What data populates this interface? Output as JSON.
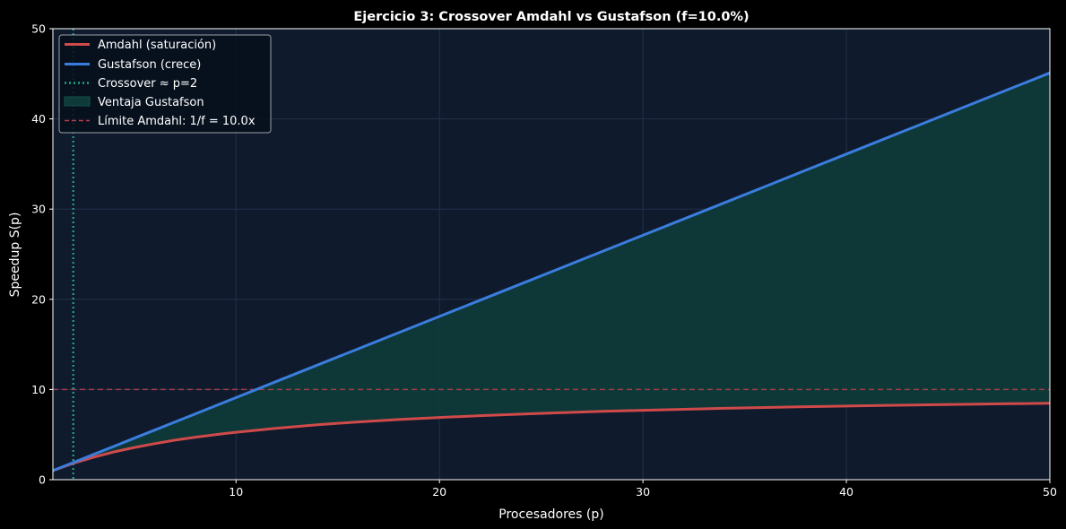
{
  "chart_data": {
    "type": "line",
    "title": "Ejercicio 3: Crossover Amdahl vs Gustafson (f=10.0%)",
    "xlabel": "Procesadores (p)",
    "ylabel": "Speedup S(p)",
    "xlim": [
      1,
      50
    ],
    "ylim": [
      0,
      50
    ],
    "xticks": [
      10,
      20,
      30,
      40,
      50
    ],
    "yticks": [
      0,
      10,
      20,
      30,
      40,
      50
    ],
    "grid": true,
    "legend_position": "top-left",
    "serial_fraction": 0.1,
    "x": [
      1,
      2,
      3,
      4,
      5,
      6,
      7,
      8,
      9,
      10,
      12,
      14,
      16,
      18,
      20,
      22,
      24,
      26,
      28,
      30,
      32,
      34,
      36,
      38,
      40,
      42,
      44,
      46,
      48,
      50
    ],
    "series": [
      {
        "name": "Amdahl (saturación)",
        "color": "#d04a4a",
        "values": [
          1.0,
          1.82,
          2.5,
          3.08,
          3.57,
          4.0,
          4.38,
          4.71,
          5.0,
          5.26,
          5.71,
          6.09,
          6.4,
          6.67,
          6.9,
          7.1,
          7.27,
          7.43,
          7.57,
          7.69,
          7.8,
          7.91,
          8.0,
          8.09,
          8.16,
          8.24,
          8.3,
          8.36,
          8.42,
          8.47
        ]
      },
      {
        "name": "Gustafson (crece)",
        "color": "#3b7ddd",
        "values": [
          1.0,
          1.9,
          2.8,
          3.7,
          4.6,
          5.5,
          6.4,
          7.3,
          8.2,
          9.1,
          10.9,
          12.7,
          14.5,
          16.3,
          18.1,
          19.9,
          21.7,
          23.5,
          25.3,
          27.1,
          28.9,
          30.7,
          32.5,
          34.3,
          36.1,
          37.9,
          39.7,
          41.5,
          43.3,
          45.1
        ]
      }
    ],
    "crossover": {
      "label": "Crossover ≈ p=2",
      "x": 2,
      "color": "#1fa487"
    },
    "fill": {
      "label": "Ventaja Gustafson",
      "color": "#0e3b3a"
    },
    "amdahl_limit": {
      "label": "Límite Amdahl: 1/f = 10.0x",
      "y": 10.0,
      "color": "#b84050"
    },
    "colors": {
      "figure_background": "#000000",
      "plot_background": "#0f1a2d",
      "text": "#ffffff",
      "grid": "#223048"
    }
  }
}
